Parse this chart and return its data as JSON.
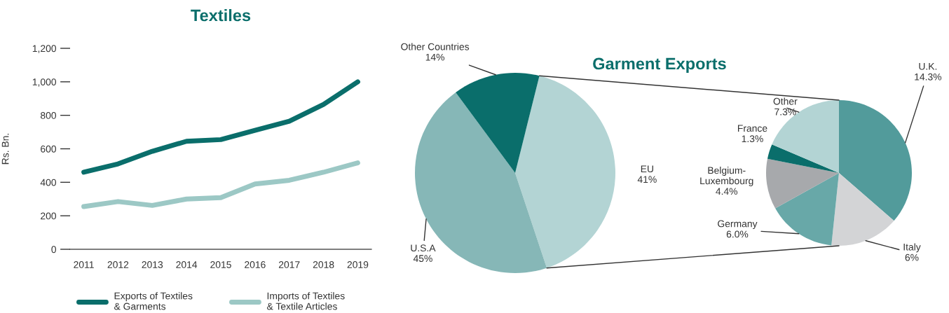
{
  "chart_data": [
    {
      "type": "line",
      "title": "Textiles",
      "ylabel": "Rs. Bn.",
      "categories": [
        "2011",
        "2012",
        "2013",
        "2014",
        "2015",
        "2016",
        "2017",
        "2018",
        "2019"
      ],
      "series": [
        {
          "name": "Exports of Textiles\n& Garments",
          "color": "#0a6e6b",
          "values": [
            460,
            510,
            585,
            645,
            655,
            710,
            765,
            865,
            1000
          ]
        },
        {
          "name": "Imports of Textiles\n& Textile Articles",
          "color": "#9cc8c5",
          "values": [
            255,
            285,
            262,
            300,
            308,
            390,
            412,
            460,
            516
          ]
        }
      ],
      "ylim": [
        0,
        1200
      ],
      "yticks": [
        {
          "value": 0,
          "label": "0"
        },
        {
          "value": 200,
          "label": "200"
        },
        {
          "value": 400,
          "label": "400"
        },
        {
          "value": 600,
          "label": "600"
        },
        {
          "value": 800,
          "label": "800"
        },
        {
          "value": 1000,
          "label": "1,000"
        },
        {
          "value": 1200,
          "label": "1,200"
        }
      ],
      "grid": false,
      "legend": "bottom",
      "marker": "none",
      "line_style": "solid"
    },
    {
      "type": "pie",
      "title": "Garment Exports",
      "categories": [
        "EU",
        "U.S.A",
        "Other Countries"
      ],
      "values": [
        41,
        45,
        14
      ],
      "colors": [
        "#b3d4d4",
        "#86b7b7",
        "#0a6e6b"
      ],
      "value_labels": [
        "41%",
        "45%",
        "14%"
      ]
    },
    {
      "type": "pie",
      "categories": [
        "U.K.",
        "Italy",
        "Germany",
        "Belgium-Luxembourg",
        "France",
        "Other"
      ],
      "values": [
        14.3,
        6,
        6.0,
        4.4,
        1.3,
        7.3
      ],
      "colors": [
        "#529b9b",
        "#d3d4d6",
        "#68a8a8",
        "#a7a9ac",
        "#0a6e6b",
        "#b3d4d4"
      ],
      "value_labels": [
        "14.3%",
        "6%",
        "6.0%",
        "4.4%",
        "1.3%",
        "7.3%"
      ]
    }
  ]
}
